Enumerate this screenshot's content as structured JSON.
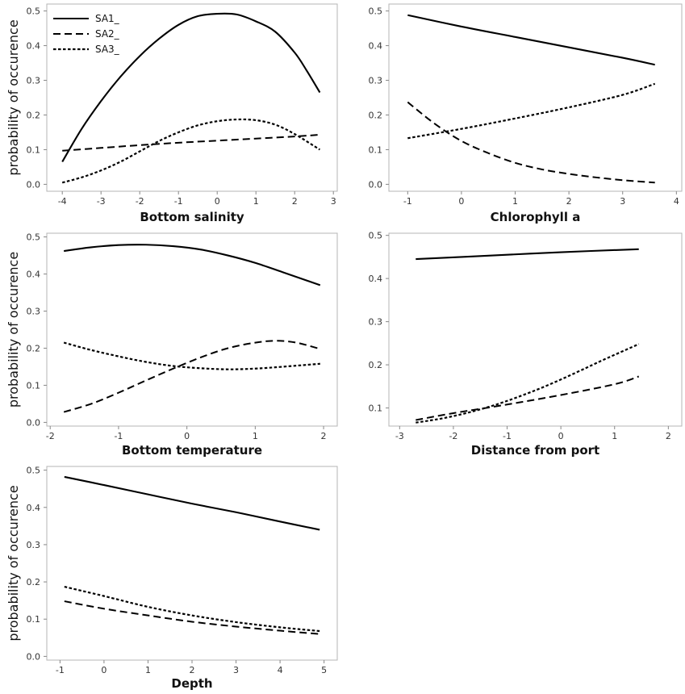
{
  "chart_data": [
    {
      "type": "line",
      "xlabel": "Bottom salinity",
      "ylabel": "probability of occurence",
      "xticks": [
        "-4",
        "-3",
        "-2",
        "-1",
        "0",
        "1",
        "2",
        "3"
      ],
      "yticks": [
        "0.0",
        "0.1",
        "0.2",
        "0.3",
        "0.4",
        "0.5"
      ],
      "xlim": [
        -4.4,
        3.1
      ],
      "ylim": [
        -0.02,
        0.52
      ],
      "legend": true,
      "series": [
        {
          "name": "SA1_",
          "style": "solid",
          "x": [
            -4,
            -3.5,
            -3,
            -2.5,
            -2,
            -1.5,
            -1,
            -0.5,
            0,
            0.5,
            1,
            1.5,
            2,
            2.3,
            2.65
          ],
          "y": [
            0.065,
            0.16,
            0.24,
            0.31,
            0.37,
            0.42,
            0.46,
            0.485,
            0.492,
            0.49,
            0.47,
            0.44,
            0.38,
            0.33,
            0.265
          ]
        },
        {
          "name": "SA2_",
          "style": "dashed",
          "x": [
            -4,
            -3,
            -2,
            -1,
            0,
            1,
            2,
            2.65
          ],
          "y": [
            0.097,
            0.105,
            0.113,
            0.12,
            0.126,
            0.132,
            0.138,
            0.143
          ]
        },
        {
          "name": "SA3_",
          "style": "dotted",
          "x": [
            -4,
            -3.5,
            -3,
            -2.5,
            -2,
            -1.5,
            -1,
            -0.5,
            0,
            0.5,
            1,
            1.5,
            2,
            2.65
          ],
          "y": [
            0.005,
            0.02,
            0.04,
            0.065,
            0.095,
            0.125,
            0.15,
            0.17,
            0.182,
            0.187,
            0.185,
            0.172,
            0.145,
            0.1
          ]
        }
      ]
    },
    {
      "type": "line",
      "xlabel": "Chlorophyll a",
      "ylabel": "",
      "xticks": [
        "-1",
        "0",
        "1",
        "2",
        "3",
        "4"
      ],
      "yticks": [
        "0.0",
        "0.1",
        "0.2",
        "0.3",
        "0.4",
        "0.5"
      ],
      "xlim": [
        -1.35,
        4.1
      ],
      "ylim": [
        -0.02,
        0.52
      ],
      "legend": false,
      "series": [
        {
          "name": "SA1_",
          "style": "solid",
          "x": [
            -1,
            0,
            1,
            2,
            3,
            3.6
          ],
          "y": [
            0.488,
            0.455,
            0.425,
            0.395,
            0.365,
            0.345
          ]
        },
        {
          "name": "SA2_",
          "style": "dashed",
          "x": [
            -1,
            -0.5,
            0,
            0.5,
            1,
            1.5,
            2,
            2.5,
            3,
            3.6
          ],
          "y": [
            0.237,
            0.175,
            0.125,
            0.09,
            0.062,
            0.043,
            0.03,
            0.02,
            0.012,
            0.005
          ]
        },
        {
          "name": "SA3_",
          "style": "dotted",
          "x": [
            -1,
            0,
            1,
            2,
            3,
            3.6
          ],
          "y": [
            0.133,
            0.16,
            0.19,
            0.222,
            0.258,
            0.29
          ]
        }
      ]
    },
    {
      "type": "line",
      "xlabel": "Bottom temperature",
      "ylabel": "probability of occurence",
      "xticks": [
        "-2",
        "-1",
        "0",
        "1",
        "2"
      ],
      "yticks": [
        "0.0",
        "0.1",
        "0.2",
        "0.3",
        "0.4",
        "0.5"
      ],
      "xlim": [
        -2.05,
        2.2
      ],
      "ylim": [
        -0.01,
        0.51
      ],
      "legend": false,
      "series": [
        {
          "name": "SA1_",
          "style": "solid",
          "x": [
            -1.8,
            -1.4,
            -1,
            -0.6,
            -0.2,
            0.2,
            0.6,
            1,
            1.4,
            1.95
          ],
          "y": [
            0.462,
            0.472,
            0.478,
            0.479,
            0.475,
            0.466,
            0.45,
            0.43,
            0.405,
            0.37
          ]
        },
        {
          "name": "SA2_",
          "style": "dashed",
          "x": [
            -1.8,
            -1.4,
            -1,
            -0.6,
            -0.2,
            0.2,
            0.6,
            1,
            1.3,
            1.6,
            1.95
          ],
          "y": [
            0.028,
            0.05,
            0.08,
            0.113,
            0.145,
            0.175,
            0.2,
            0.215,
            0.22,
            0.215,
            0.198
          ]
        },
        {
          "name": "SA3_",
          "style": "dotted",
          "x": [
            -1.8,
            -1.4,
            -1,
            -0.6,
            -0.2,
            0.2,
            0.6,
            1,
            1.4,
            1.95
          ],
          "y": [
            0.215,
            0.195,
            0.178,
            0.163,
            0.152,
            0.146,
            0.143,
            0.145,
            0.15,
            0.158
          ]
        }
      ]
    },
    {
      "type": "line",
      "xlabel": "Distance from port",
      "ylabel": "",
      "xticks": [
        "-3",
        "-2",
        "-1",
        "0",
        "1",
        "2"
      ],
      "yticks": [
        "0.1",
        "0.2",
        "0.3",
        "0.4",
        "0.5"
      ],
      "xlim": [
        -3.2,
        2.25
      ],
      "ylim": [
        0.058,
        0.505
      ],
      "legend": false,
      "series": [
        {
          "name": "SA1_",
          "style": "solid",
          "x": [
            -2.7,
            -1.5,
            0,
            1.45
          ],
          "y": [
            0.445,
            0.452,
            0.461,
            0.468
          ]
        },
        {
          "name": "SA2_",
          "style": "dashed",
          "x": [
            -2.7,
            -2,
            -1,
            0,
            1,
            1.45
          ],
          "y": [
            0.072,
            0.088,
            0.108,
            0.13,
            0.155,
            0.173
          ]
        },
        {
          "name": "SA3_",
          "style": "dotted",
          "x": [
            -2.7,
            -2.2,
            -1.7,
            -1.2,
            -0.7,
            -0.2,
            0.3,
            0.8,
            1.45
          ],
          "y": [
            0.066,
            0.076,
            0.09,
            0.108,
            0.13,
            0.155,
            0.183,
            0.212,
            0.248
          ]
        }
      ]
    },
    {
      "type": "line",
      "xlabel": "Depth",
      "ylabel": "probability of occurence",
      "xticks": [
        "-1",
        "0",
        "1",
        "2",
        "3",
        "4",
        "5"
      ],
      "yticks": [
        "0.0",
        "0.1",
        "0.2",
        "0.3",
        "0.4",
        "0.5"
      ],
      "xlim": [
        -1.3,
        5.3
      ],
      "ylim": [
        -0.01,
        0.51
      ],
      "legend": false,
      "series": [
        {
          "name": "SA1_",
          "style": "solid",
          "x": [
            -0.9,
            0,
            1,
            2,
            3,
            4,
            4.9
          ],
          "y": [
            0.482,
            0.46,
            0.435,
            0.41,
            0.387,
            0.362,
            0.34
          ]
        },
        {
          "name": "SA2_",
          "style": "dashed",
          "x": [
            -0.9,
            0,
            1,
            2,
            3,
            4,
            4.9
          ],
          "y": [
            0.148,
            0.128,
            0.11,
            0.093,
            0.08,
            0.069,
            0.06
          ]
        },
        {
          "name": "SA3_",
          "style": "dotted",
          "x": [
            -0.9,
            0,
            1,
            2,
            3,
            4,
            4.9
          ],
          "y": [
            0.187,
            0.162,
            0.133,
            0.11,
            0.092,
            0.078,
            0.068
          ]
        }
      ]
    }
  ]
}
